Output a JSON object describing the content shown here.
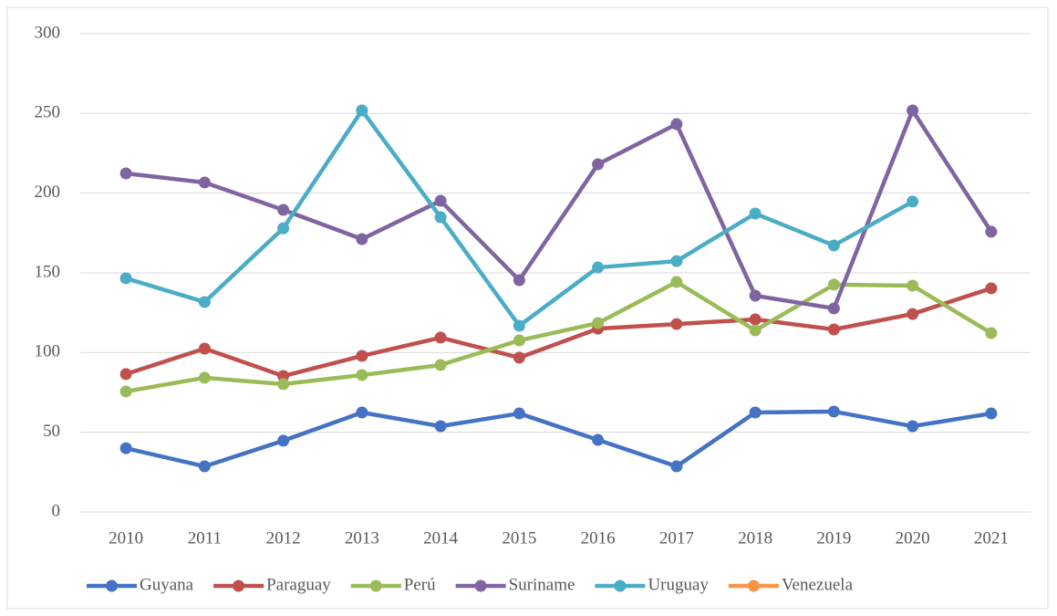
{
  "chart_data": {
    "type": "line",
    "categories": [
      "2010",
      "2011",
      "2012",
      "2013",
      "2014",
      "2015",
      "2016",
      "2017",
      "2018",
      "2019",
      "2020",
      "2021"
    ],
    "series": [
      {
        "name": "Guyana",
        "color": "#4472c4",
        "values": [
          40,
          28.6,
          44.7,
          62.4,
          53.8,
          61.8,
          45.2,
          28.6,
          62.4,
          63,
          53.8,
          61.8
        ]
      },
      {
        "name": "Paraguay",
        "color": "#c0504d",
        "values": [
          86.5,
          102.5,
          85.3,
          97.9,
          109.4,
          96.8,
          115,
          117.9,
          120.8,
          114.5,
          124.2,
          140.3
        ]
      },
      {
        "name": "Perú",
        "color": "#9bbb59",
        "values": [
          75.6,
          84.2,
          80.2,
          85.9,
          92.2,
          107.6,
          118.5,
          144.3,
          113.9,
          142.6,
          142,
          112.2
        ]
      },
      {
        "name": "Suriname",
        "color": "#8064a2",
        "values": [
          212.4,
          206.7,
          189.5,
          171.2,
          195.2,
          145.4,
          218.1,
          243.3,
          135.7,
          127.7,
          251.9,
          175.8
        ]
      },
      {
        "name": "Uruguay",
        "color": "#4bacc6",
        "values": [
          146.6,
          131.7,
          178,
          251.9,
          184.9,
          116.8,
          153.4,
          157.4,
          187.2,
          167.2,
          194.7,
          null
        ]
      },
      {
        "name": "Venezuela",
        "color": "#f79646",
        "values": [
          null,
          null,
          null,
          null,
          null,
          null,
          null,
          null,
          null,
          null,
          null,
          null
        ]
      }
    ],
    "ylim": [
      0,
      300
    ],
    "yticks": [
      0,
      50,
      100,
      150,
      200,
      250,
      300
    ],
    "grid": true,
    "legend": "bottom"
  }
}
